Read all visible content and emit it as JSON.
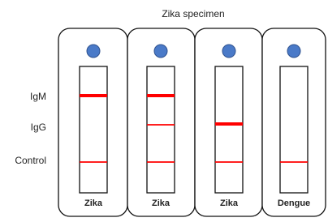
{
  "title": "Zika specimen",
  "row_labels": [
    "IgM",
    "IgG",
    "Control"
  ],
  "panels": [
    {
      "label": "Zika"
    },
    {
      "label": "Zika"
    },
    {
      "label": "Zika"
    },
    {
      "label": "Dengue"
    }
  ]
}
